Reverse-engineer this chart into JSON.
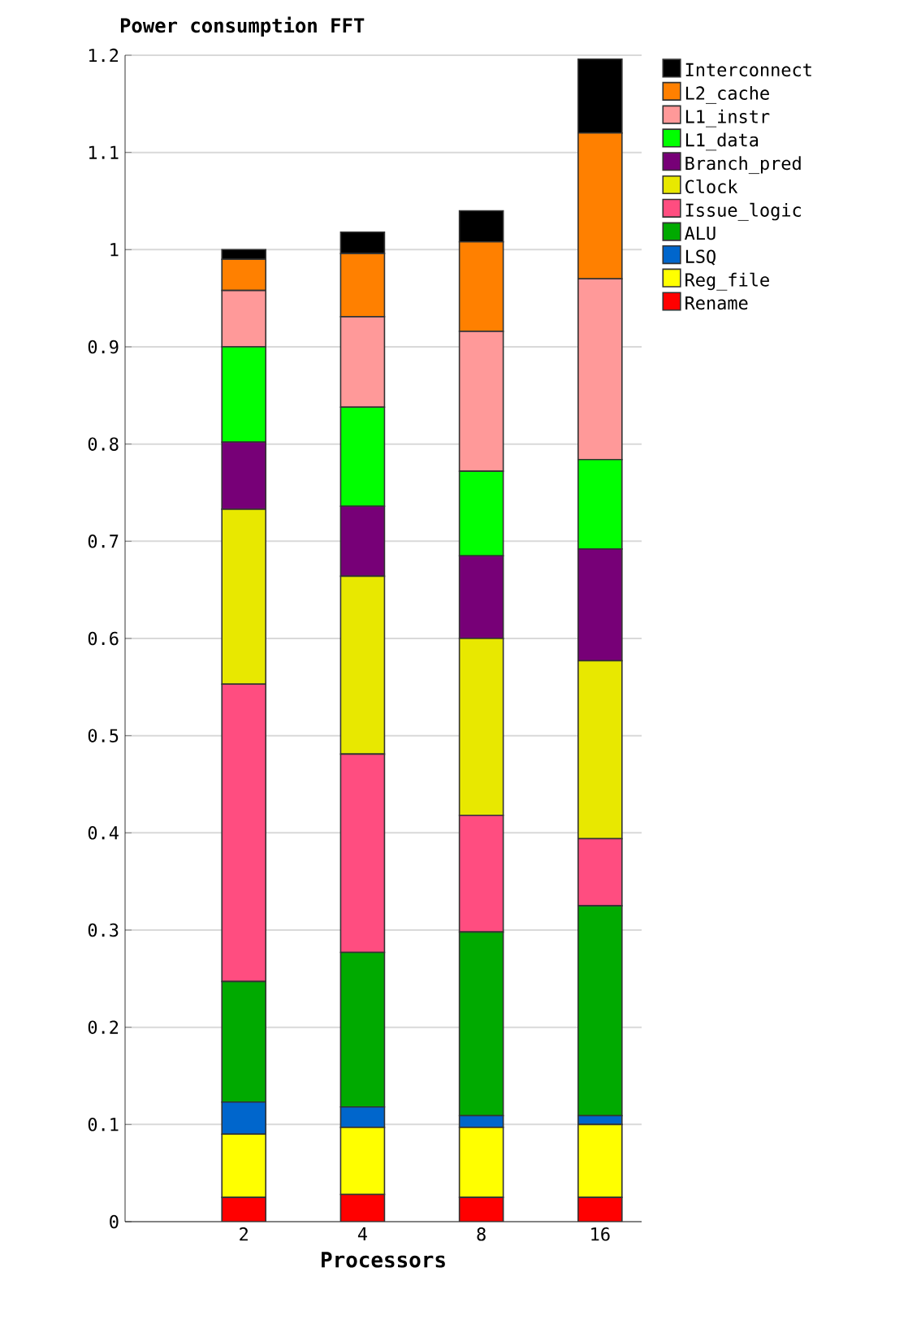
{
  "chart_data": {
    "type": "bar",
    "title": "Power consumption FFT",
    "xlabel": "Processors",
    "categories": [
      "2",
      "4",
      "8",
      "16"
    ],
    "stacked": true,
    "grid": "y",
    "legend": "top right",
    "ylim": [
      0,
      1.2
    ],
    "yticks": [
      0,
      0.1,
      0.2,
      0.3,
      0.4,
      0.5,
      0.6,
      0.7,
      0.8,
      0.9,
      1,
      1.1,
      1.2
    ],
    "series": [
      {
        "name": "Rename",
        "color": "#ff0000",
        "values": [
          0.025,
          0.028,
          0.025,
          0.025
        ]
      },
      {
        "name": "Reg_file",
        "color": "#ffff00",
        "values": [
          0.065,
          0.069,
          0.072,
          0.075
        ]
      },
      {
        "name": "LSQ",
        "color": "#0066cc",
        "values": [
          0.033,
          0.021,
          0.012,
          0.009
        ]
      },
      {
        "name": "ALU",
        "color": "#00aa00",
        "values": [
          0.124,
          0.159,
          0.189,
          0.216
        ]
      },
      {
        "name": "Issue_logic",
        "color": "#ff4d80",
        "values": [
          0.306,
          0.204,
          0.12,
          0.069
        ]
      },
      {
        "name": "Clock",
        "color": "#e8e800",
        "values": [
          0.18,
          0.183,
          0.182,
          0.183
        ]
      },
      {
        "name": "Branch_pred",
        "color": "#770077",
        "values": [
          0.069,
          0.072,
          0.085,
          0.115
        ]
      },
      {
        "name": "L1_data",
        "color": "#00ff00",
        "values": [
          0.098,
          0.102,
          0.087,
          0.092
        ]
      },
      {
        "name": "L1_instr",
        "color": "#ff9999",
        "values": [
          0.058,
          0.093,
          0.144,
          0.186
        ]
      },
      {
        "name": "L2_cache",
        "color": "#ff8000",
        "values": [
          0.032,
          0.065,
          0.092,
          0.15
        ]
      },
      {
        "name": "Interconnect",
        "color": "#000000",
        "values": [
          0.01,
          0.022,
          0.032,
          0.076
        ]
      }
    ]
  }
}
